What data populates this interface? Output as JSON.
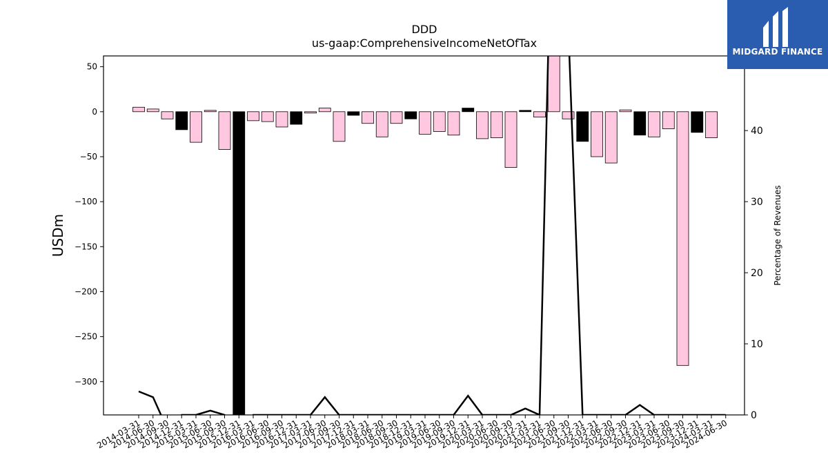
{
  "brand": {
    "name": "MIDGARD FINANCE",
    "color": "#2a5db0"
  },
  "chart_data": {
    "type": "bar",
    "title": "DDD",
    "subtitle": "us-gaap:ComprehensiveIncomeNetOfTax",
    "ylabel": "USDm",
    "y2label": "Percentage of Revenues",
    "ylim": [
      -337,
      62
    ],
    "y2lim": [
      0,
      50.5
    ],
    "yticks": [
      50,
      0,
      -50,
      -100,
      -150,
      -200,
      -250,
      -300
    ],
    "y2ticks": [
      0,
      10,
      20,
      30,
      40,
      50
    ],
    "colors": {
      "positive_period": "#ffc8e0",
      "highlight": "#000000"
    },
    "categories": [
      "2014-03-31",
      "2014-06-30",
      "2014-09-30",
      "2014-12-31",
      "2015-03-31",
      "2015-06-30",
      "2015-09-30",
      "2015-12-31",
      "2016-03-31",
      "2016-06-30",
      "2016-09-30",
      "2016-12-31",
      "2017-03-31",
      "2017-06-30",
      "2017-09-30",
      "2017-12-31",
      "2018-03-31",
      "2018-06-30",
      "2018-09-30",
      "2018-12-31",
      "2019-03-31",
      "2019-06-30",
      "2019-09-30",
      "2019-12-31",
      "2020-03-31",
      "2020-06-30",
      "2020-09-30",
      "2020-12-31",
      "2021-03-31",
      "2021-06-30",
      "2021-09-30",
      "2021-12-31",
      "2022-03-31",
      "2022-06-30",
      "2022-09-30",
      "2022-12-31",
      "2023-03-31",
      "2023-06-30",
      "2023-09-30",
      "2023-12-31",
      "2024-03-31",
      "2024-06-30"
    ],
    "values": [
      5,
      3,
      -8,
      -20,
      -34,
      1.5,
      -42,
      -337,
      -10,
      -11,
      -17,
      -14,
      -1.5,
      4,
      -33,
      -4,
      -13,
      -28,
      -13,
      -8,
      -25,
      -22,
      -26,
      4,
      -30,
      -29,
      -62,
      1.5,
      -6,
      85,
      -8,
      -33,
      -50,
      -57,
      2,
      -26,
      -28,
      -19,
      -282,
      -23,
      -29,
      0
    ],
    "highlight": [
      false,
      false,
      false,
      true,
      false,
      false,
      false,
      true,
      false,
      false,
      false,
      true,
      false,
      false,
      false,
      true,
      false,
      false,
      false,
      true,
      false,
      false,
      false,
      true,
      false,
      false,
      false,
      true,
      false,
      false,
      false,
      true,
      false,
      false,
      false,
      true,
      false,
      false,
      false,
      true,
      false,
      false
    ],
    "percent_of_revenues": [
      3.3,
      2.5,
      -2,
      0,
      0,
      0.6,
      0,
      -4,
      0,
      0,
      0,
      0,
      0,
      2.5,
      0,
      0,
      0,
      0,
      0,
      0,
      0,
      0,
      0,
      2.7,
      0,
      0,
      0,
      0.9,
      0,
      85,
      55,
      0,
      0,
      0,
      0,
      1.4,
      0,
      0,
      0,
      0,
      0,
      0
    ]
  }
}
